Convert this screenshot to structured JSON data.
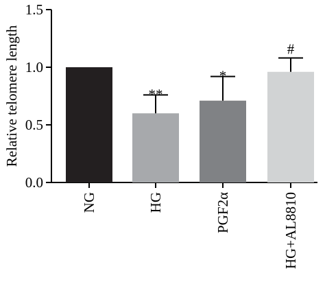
{
  "chart_data": {
    "type": "bar",
    "title": "",
    "xlabel": "",
    "ylabel": "Relative telomere length",
    "ylim": [
      0,
      1.5
    ],
    "yticks": [
      0.0,
      0.5,
      1.0,
      1.5
    ],
    "ytick_labels": [
      "0.0",
      "0.5",
      "1.0",
      "1.5"
    ],
    "categories": [
      "NG",
      "HG",
      "PGF2α",
      "HG+AL8810"
    ],
    "values": [
      1.0,
      0.6,
      0.71,
      0.96
    ],
    "errors": [
      0,
      0.16,
      0.21,
      0.12
    ],
    "annotations": [
      "",
      "**",
      "*",
      "#"
    ],
    "colors": [
      "#231f20",
      "#a7a9ac",
      "#808285",
      "#d1d3d4"
    ],
    "grid": false,
    "legend": "none"
  }
}
